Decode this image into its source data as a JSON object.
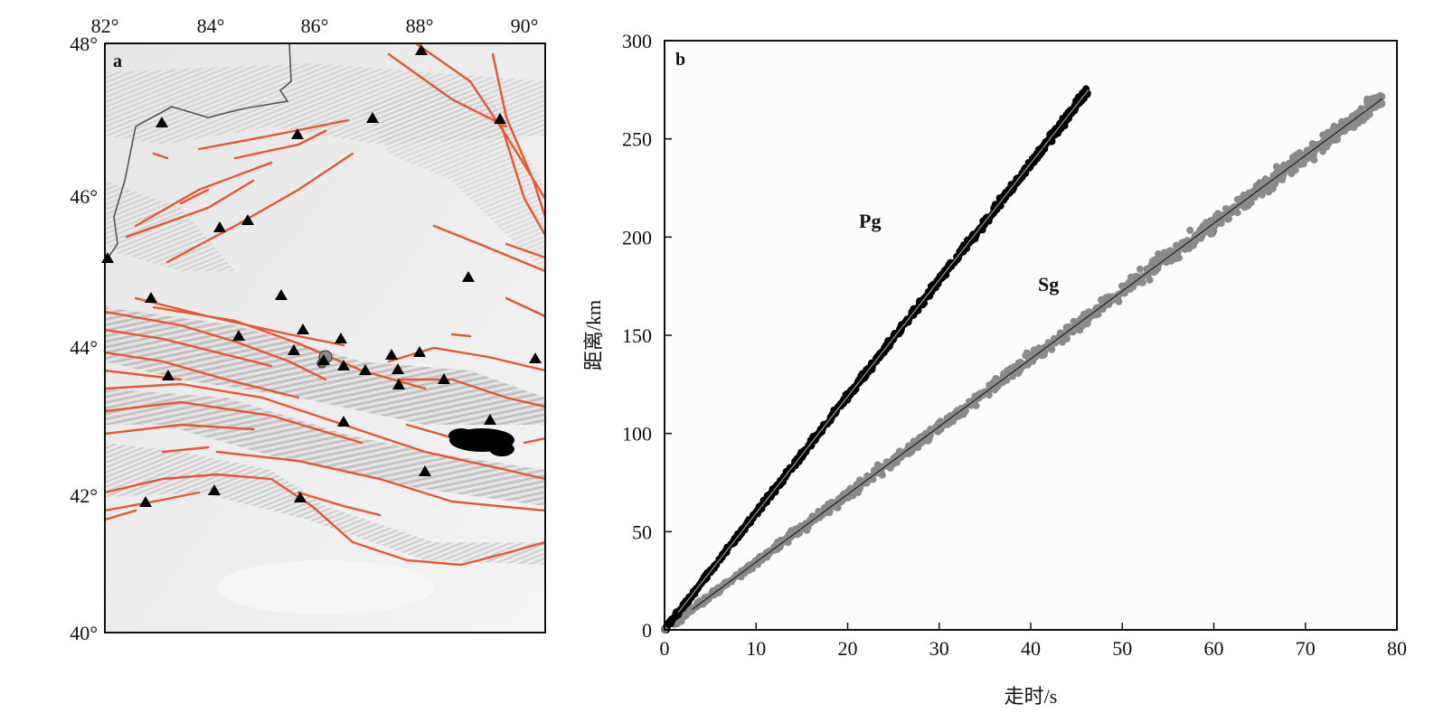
{
  "map": {
    "panel_label": "a",
    "lon_ticks": [
      "82°",
      "84°",
      "86°",
      "88°",
      "90°"
    ],
    "lat_ticks": [
      "48°",
      "46°",
      "44°",
      "42°",
      "40°"
    ],
    "colors": {
      "faults": "#e8562a",
      "stations": "#000000",
      "border": "#555555"
    }
  },
  "chart_data": {
    "type": "scatter",
    "panel_label": "b",
    "xlabel": "走时/s",
    "ylabel": "距离/km",
    "xlim": [
      0,
      80
    ],
    "ylim": [
      0,
      300
    ],
    "x_ticks": [
      0,
      10,
      20,
      30,
      40,
      50,
      60,
      70,
      80
    ],
    "y_ticks": [
      0,
      50,
      100,
      150,
      200,
      250,
      300
    ],
    "grid": false,
    "series": [
      {
        "name": "Pg",
        "color": "#000000",
        "fit_line": {
          "slope": 5.94,
          "intercept": 0.0
        },
        "x_range": [
          0,
          46.3
        ],
        "approx_points": [
          [
            0,
            0
          ],
          [
            2,
            11
          ],
          [
            5,
            29
          ],
          [
            10,
            59
          ],
          [
            15,
            89
          ],
          [
            20,
            119
          ],
          [
            25,
            149
          ],
          [
            30,
            178
          ],
          [
            35,
            208
          ],
          [
            40,
            238
          ],
          [
            43,
            255
          ],
          [
            46,
            273
          ]
        ]
      },
      {
        "name": "Sg",
        "color": "#8a8a8a",
        "fit_line": {
          "slope": 3.45,
          "intercept": 0.0
        },
        "x_range": [
          1,
          78.4
        ],
        "approx_points": [
          [
            2,
            7
          ],
          [
            5,
            17
          ],
          [
            10,
            34
          ],
          [
            20,
            69
          ],
          [
            30,
            103
          ],
          [
            40,
            138
          ],
          [
            50,
            172
          ],
          [
            60,
            207
          ],
          [
            70,
            241
          ],
          [
            78,
            270
          ]
        ]
      }
    ]
  }
}
